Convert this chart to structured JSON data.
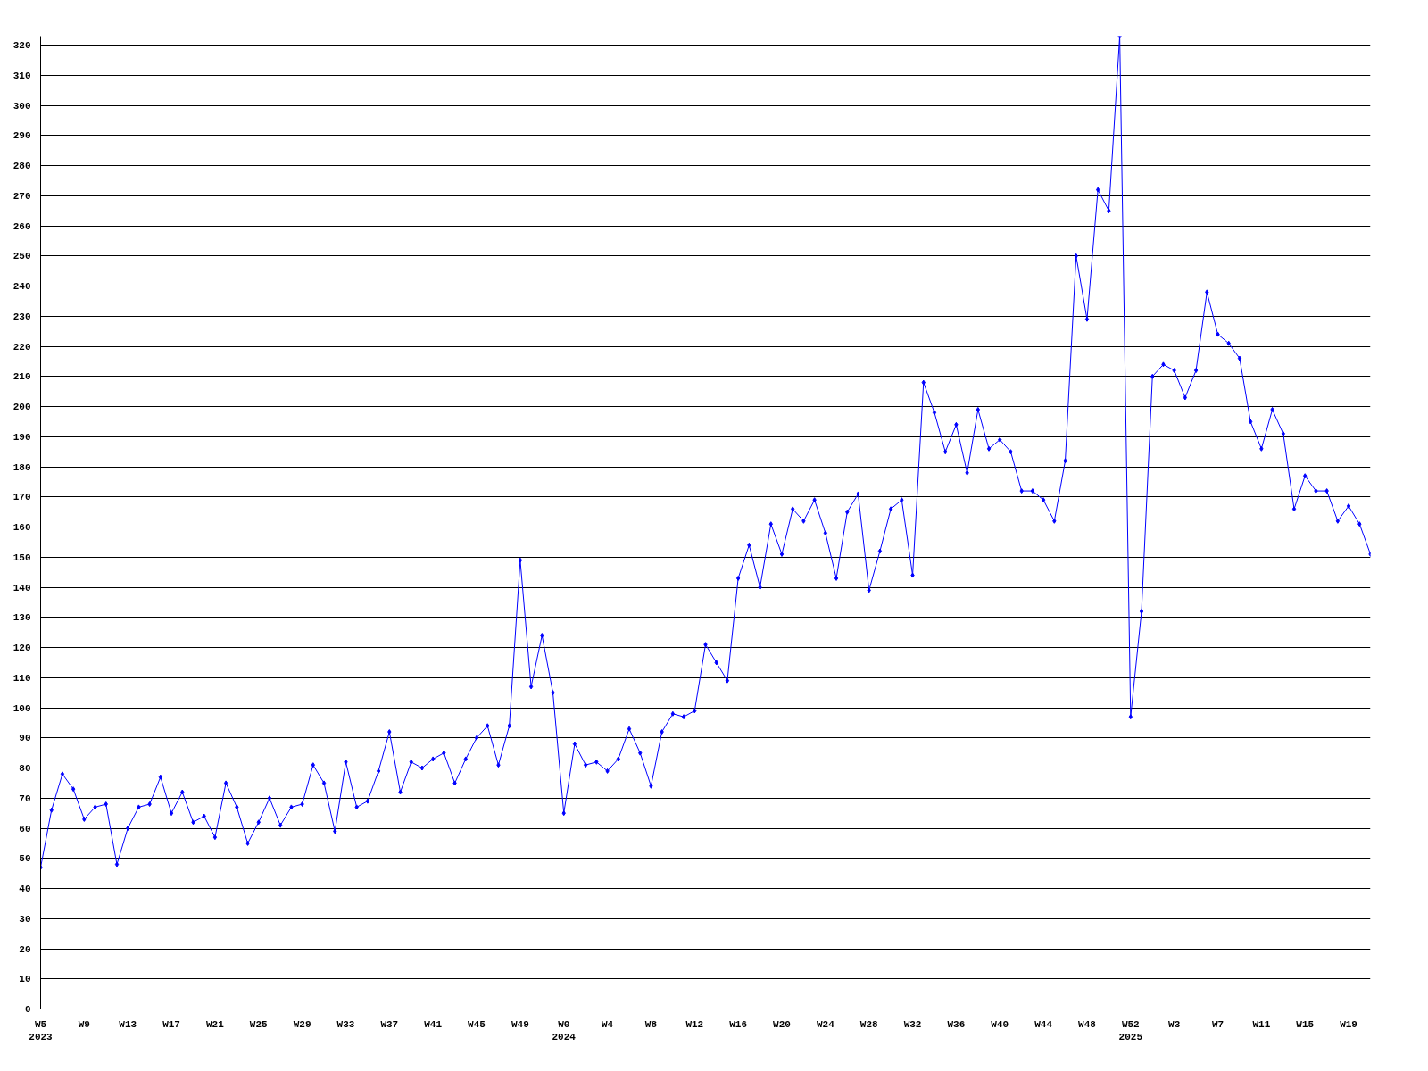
{
  "chart_data": {
    "type": "line",
    "categories": [
      "W5\n2023",
      null,
      null,
      null,
      "W9",
      null,
      null,
      null,
      "W13",
      null,
      null,
      null,
      "W17",
      null,
      null,
      null,
      "W21",
      null,
      null,
      null,
      "W25",
      null,
      null,
      null,
      "W29",
      null,
      null,
      null,
      "W33",
      null,
      null,
      null,
      "W37",
      null,
      null,
      null,
      "W41",
      null,
      null,
      null,
      "W45",
      null,
      null,
      null,
      "W49",
      null,
      null,
      null,
      "W0\n2024",
      null,
      null,
      null,
      "W4",
      null,
      null,
      null,
      "W8",
      null,
      null,
      null,
      "W12",
      null,
      null,
      null,
      "W16",
      null,
      null,
      null,
      "W20",
      null,
      null,
      null,
      "W24",
      null,
      null,
      null,
      "W28",
      null,
      null,
      null,
      "W32",
      null,
      null,
      null,
      "W36",
      null,
      null,
      null,
      "W40",
      null,
      null,
      null,
      "W44",
      null,
      null,
      null,
      "W48",
      null,
      null,
      null,
      "W52\n2025",
      null,
      null,
      null,
      "W3",
      null,
      null,
      null,
      "W7",
      null,
      null,
      null,
      "W11",
      null,
      null,
      null,
      "W15",
      null,
      null,
      null,
      "W19",
      null,
      null
    ],
    "series": [
      {
        "color": "#0000ff",
        "values": [
          47,
          66,
          78,
          73,
          63,
          67,
          68,
          48,
          60,
          67,
          68,
          77,
          65,
          72,
          62,
          64,
          57,
          75,
          67,
          55,
          62,
          70,
          61,
          67,
          68,
          81,
          75,
          59,
          82,
          67,
          69,
          79,
          92,
          72,
          82,
          80,
          83,
          85,
          75,
          83,
          90,
          94,
          81,
          94,
          149,
          107,
          124,
          105,
          65,
          88,
          81,
          82,
          79,
          83,
          93,
          85,
          74,
          92,
          98,
          97,
          99,
          121,
          115,
          109,
          143,
          154,
          140,
          161,
          151,
          166,
          162,
          169,
          158,
          143,
          165,
          171,
          139,
          152,
          166,
          169,
          144,
          208,
          198,
          185,
          194,
          178,
          199,
          186,
          189,
          185,
          172,
          172,
          169,
          162,
          182,
          250,
          229,
          272,
          265,
          323,
          97,
          132,
          210,
          214,
          212,
          203,
          212,
          238,
          224,
          221,
          216,
          195,
          186,
          199,
          191,
          166,
          177,
          172,
          172,
          162,
          167,
          161,
          151
        ]
      }
    ],
    "ylim": [
      0,
      323
    ],
    "yticks": [
      0,
      10,
      20,
      30,
      40,
      50,
      60,
      70,
      80,
      90,
      100,
      110,
      120,
      130,
      140,
      150,
      160,
      170,
      180,
      190,
      200,
      210,
      220,
      230,
      240,
      250,
      260,
      270,
      280,
      290,
      300,
      310,
      320
    ],
    "grid": "y",
    "marker": "diamond",
    "line_style": "solid"
  }
}
